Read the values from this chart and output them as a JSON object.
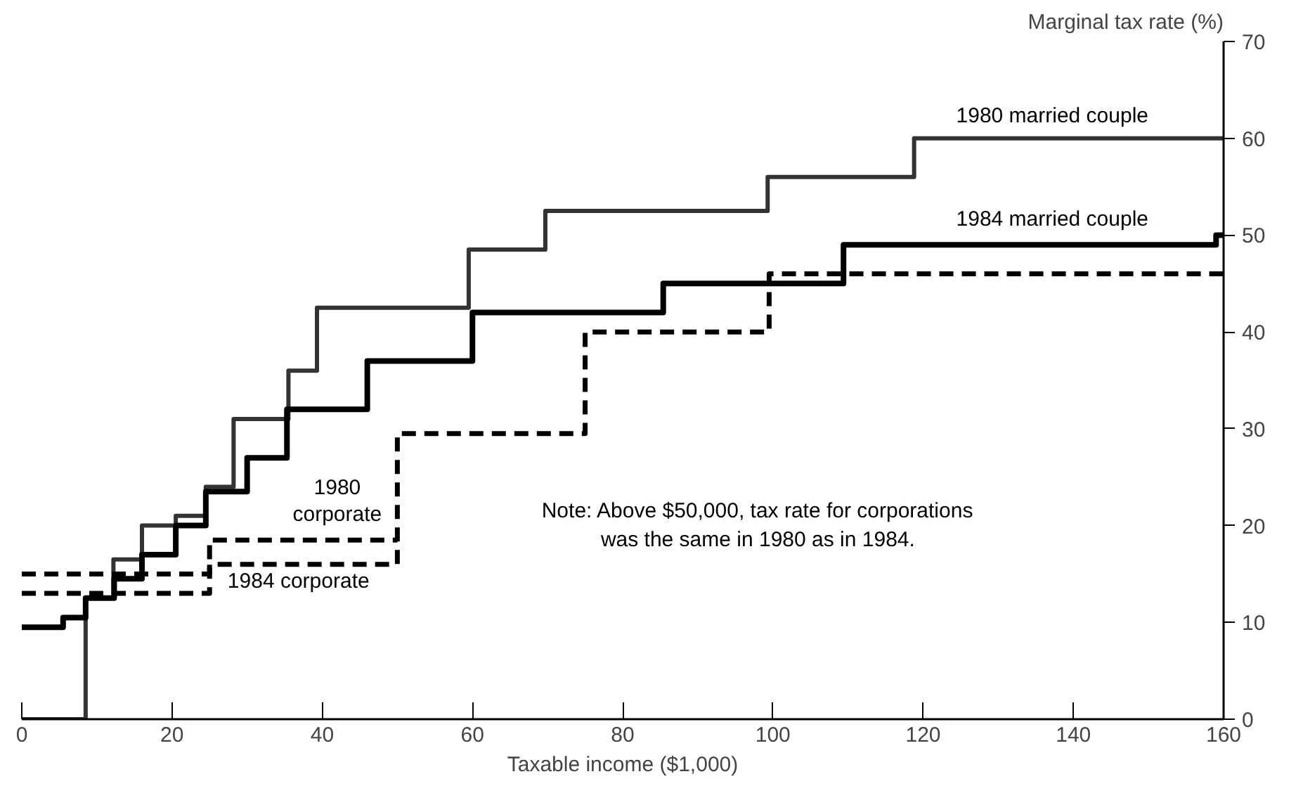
{
  "chart_data": {
    "type": "step",
    "xlabel": "Taxable income ($1,000)",
    "ylabel": "Marginal tax rate (%)",
    "xlim": [
      0,
      160
    ],
    "xticks": [
      0,
      20,
      40,
      60,
      80,
      100,
      120,
      140,
      160
    ],
    "ylim": [
      0,
      70
    ],
    "yticks": [
      0,
      10,
      20,
      30,
      40,
      50,
      60,
      70
    ],
    "grid": false,
    "legend": false,
    "marker": "none",
    "series": [
      {
        "name": "1980 married couple",
        "color": "#333333",
        "line_style": "solid",
        "x": [
          0,
          8.5,
          12.2,
          16,
          20.5,
          24.5,
          28.2,
          35.5,
          39.3,
          59.5,
          69.7,
          99.3,
          118.8,
          160
        ],
        "values": [
          0,
          12.5,
          16.5,
          20,
          21,
          24,
          31,
          36,
          42.5,
          48.5,
          52.5,
          56,
          60,
          60
        ]
      },
      {
        "name": "1984 married couple",
        "color": "#000000",
        "line_style": "solid",
        "x": [
          0,
          5.5,
          8.5,
          12.3,
          16,
          20.5,
          24.5,
          30,
          35.3,
          46,
          60,
          85.4,
          109.4,
          159,
          160
        ],
        "values": [
          9.5,
          10.5,
          12.5,
          14.5,
          17,
          20,
          23.5,
          27,
          32,
          37,
          42,
          45,
          49,
          50,
          50
        ]
      },
      {
        "name": "1980\ncorporate",
        "color": "#000000",
        "line_style": "dashed",
        "x": [
          0,
          25,
          50
        ],
        "values": [
          15,
          18.5,
          18.5
        ]
      },
      {
        "name": "1984 corporate",
        "color": "#000000",
        "line_style": "dashed",
        "x": [
          0,
          25,
          50,
          75,
          99.5,
          160
        ],
        "values": [
          13,
          16,
          29.5,
          40,
          46,
          46
        ]
      }
    ],
    "annotations": [
      "Note: Above $50,000, tax rate for corporations\nwas the same in 1980 as in 1984."
    ]
  }
}
